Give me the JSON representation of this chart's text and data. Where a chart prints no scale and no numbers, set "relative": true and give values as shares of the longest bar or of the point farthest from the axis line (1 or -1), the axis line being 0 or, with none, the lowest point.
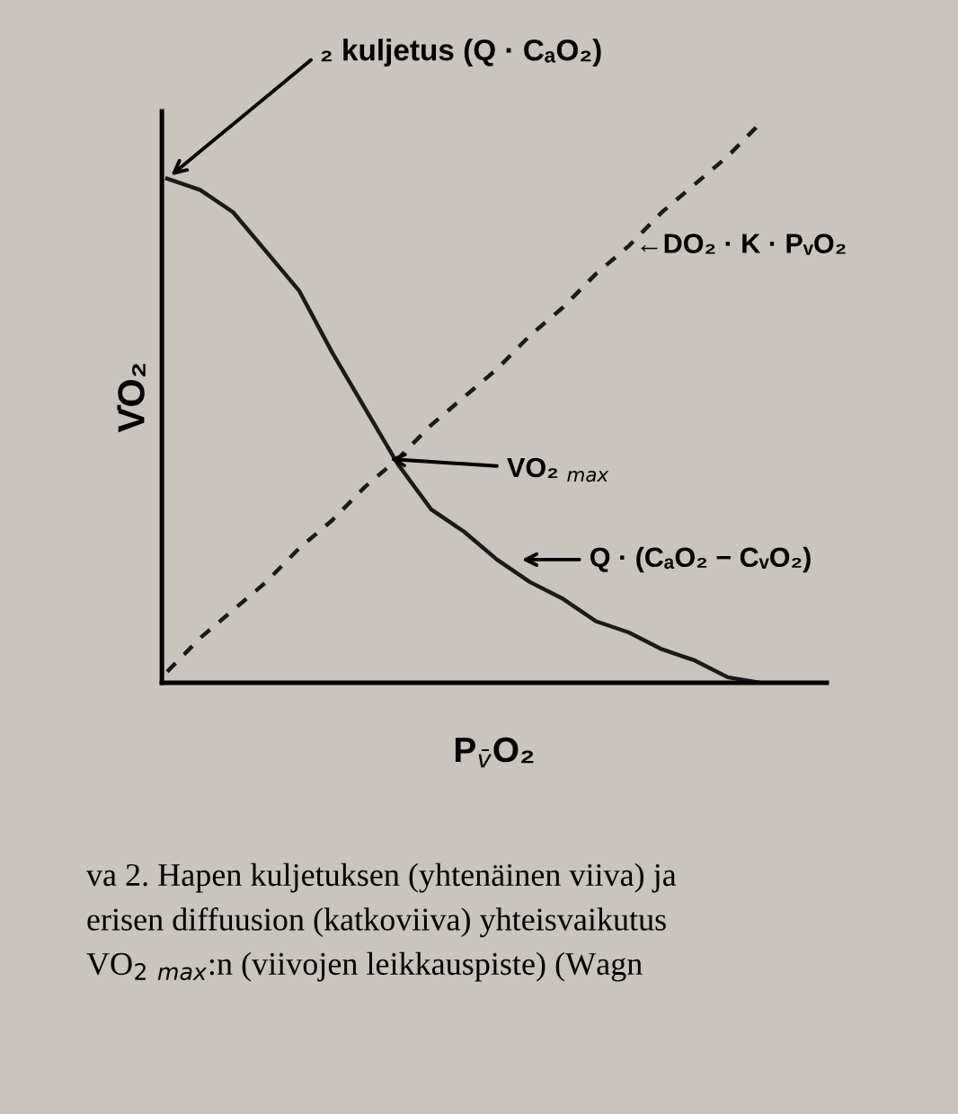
{
  "chart_data": {
    "type": "line",
    "relative": true,
    "title": "₂ kuljetus (Q · CₐO₂)",
    "xlabel": "P$_{v̄}$O₂",
    "ylabel": "V̇O₂",
    "categories": [
      null,
      null,
      null,
      null,
      null,
      null,
      null,
      null,
      null,
      null,
      null,
      null,
      null,
      null,
      null,
      null,
      null,
      null,
      null
    ],
    "series": [
      {
        "color": "#1a1a1a",
        "line_style": "solid",
        "values": [
          0.9,
          0.88,
          0.84,
          0.77,
          0.7,
          0.59,
          0.49,
          0.39,
          0.31,
          0.27,
          0.22,
          0.18,
          0.15,
          0.11,
          0.09,
          0.06,
          0.04,
          0.01,
          0.0
        ]
      },
      {
        "color": "#1a1a1a",
        "line_style": "dashed",
        "values": [
          0.02,
          0.08,
          0.13,
          0.18,
          0.24,
          0.29,
          0.35,
          0.4,
          0.46,
          0.51,
          0.56,
          0.62,
          0.67,
          0.73,
          0.78,
          0.84,
          0.89,
          0.94,
          1.0
        ]
      }
    ],
    "annotations": [
      "←DO₂ · K · PᵥO₂",
      "VO₂ $_{max}$",
      "Q · (CₐO₂ − CᵥO₂)",
      "va 2. Hapen kuljetuksen (yhtenäinen viiva) ja",
      "erisen diffuusion (katkoviiva) yhteisvaikutus",
      "VO$_{2}$ $_{max}$:n (viivojen leikkauspiste) (Wagn"
    ],
    "grid": false,
    "legend": false
  }
}
